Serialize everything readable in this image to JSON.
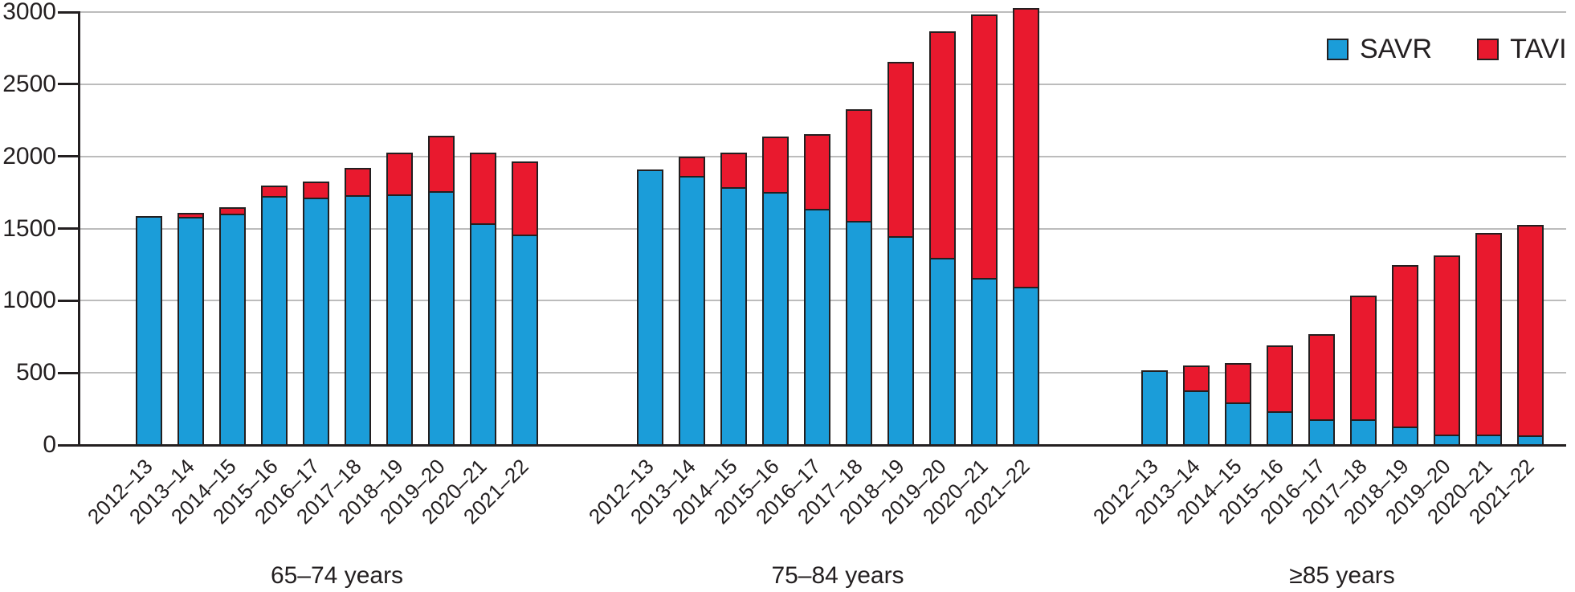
{
  "chart_data": {
    "type": "bar",
    "stacked": true,
    "title": "",
    "categories": [
      "2012–13",
      "2013–14",
      "2014–15",
      "2015–16",
      "2016–17",
      "2017–18",
      "2018–19",
      "2019–20",
      "2020–21",
      "2021–22"
    ],
    "groups": [
      {
        "label": "65–74 years",
        "series": [
          {
            "name": "SAVR",
            "values": [
              1585,
              1580,
              1600,
              1720,
              1715,
              1730,
              1735,
              1760,
              1535,
              1460
            ]
          },
          {
            "name": "TAVI",
            "values": [
              0,
              30,
              45,
              75,
              110,
              190,
              290,
              385,
              490,
              505
            ]
          }
        ]
      },
      {
        "label": "75–84 years",
        "series": [
          {
            "name": "SAVR",
            "values": [
              1910,
              1865,
              1785,
              1750,
              1640,
              1550,
              1445,
              1295,
              1160,
              1100
            ]
          },
          {
            "name": "TAVI",
            "values": [
              0,
              135,
              240,
              385,
              515,
              775,
              1210,
              1570,
              1825,
              1930
            ]
          }
        ]
      },
      {
        "label": "≥85 years",
        "series": [
          {
            "name": "SAVR",
            "values": [
              515,
              375,
              290,
              235,
              180,
              180,
              125,
              75,
              75,
              65
            ]
          },
          {
            "name": "TAVI",
            "values": [
              0,
              175,
              275,
              455,
              590,
              855,
              1120,
              1240,
              1395,
              1460
            ]
          }
        ]
      }
    ],
    "xlabel": "",
    "ylabel": "",
    "ylim": [
      0,
      3000
    ],
    "yticks": [
      0,
      500,
      1000,
      1500,
      2000,
      2500,
      3000
    ],
    "grid": "horizontal",
    "legend": {
      "position": "top-right",
      "entries": [
        {
          "label": "SAVR",
          "color": "#1b9dd9"
        },
        {
          "label": "TAVI",
          "color": "#e9192e"
        }
      ]
    },
    "colors": {
      "savr_blue": "#1b9dd9",
      "tavi_red": "#e9192e",
      "outline": "#231f20",
      "gridline": "#bcbcbc",
      "text": "#231f20"
    }
  }
}
